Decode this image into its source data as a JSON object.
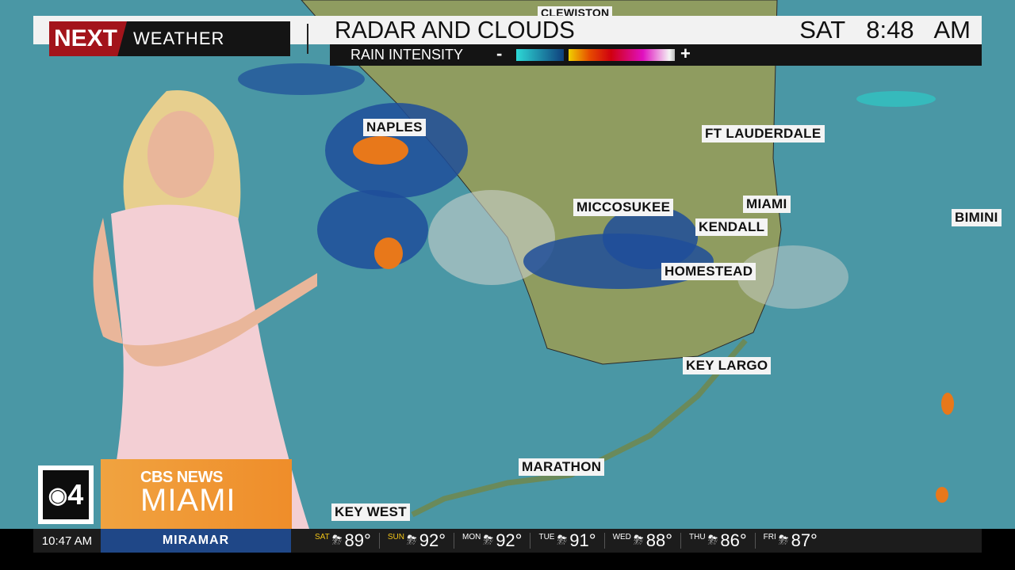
{
  "header": {
    "logo_next": "NEXT",
    "logo_weather": "WEATHER",
    "title": "RADAR AND CLOUDS",
    "day": "SAT",
    "time": "8:48 AM",
    "legend_label": "RAIN INTENSITY",
    "legend_minus": "-",
    "legend_plus": "+"
  },
  "map_labels": [
    "CLEWISTON",
    "NAPLES",
    "FT LAUDERDALE",
    "MICCOSUKEE",
    "MIAMI",
    "KENDALL",
    "BIMINI",
    "HOMESTEAD",
    "KEY LARGO",
    "MARATHON",
    "KEY WEST"
  ],
  "badge": {
    "channel": "4",
    "network": "CBS NEWS",
    "city": "MIAMI"
  },
  "ticker": {
    "clock": "10:47 AM",
    "location": "MIRAMAR",
    "forecast": [
      {
        "day": "SAT",
        "temp": "89°",
        "icon": "thunderstorm-icon",
        "highlight": true
      },
      {
        "day": "SUN",
        "temp": "92°",
        "icon": "thunderstorm-icon",
        "highlight": true
      },
      {
        "day": "MON",
        "temp": "92°",
        "icon": "thunderstorm-icon",
        "highlight": false
      },
      {
        "day": "TUE",
        "temp": "91°",
        "icon": "thunderstorm-icon",
        "highlight": false
      },
      {
        "day": "WED",
        "temp": "88°",
        "icon": "thunderstorm-icon",
        "highlight": false
      },
      {
        "day": "THU",
        "temp": "86°",
        "icon": "thunderstorm-icon",
        "highlight": false
      },
      {
        "day": "FRI",
        "temp": "87°",
        "icon": "thunderstorm-icon",
        "highlight": false
      }
    ]
  },
  "colors": {
    "ocean": "#4a97a5",
    "land": "#8a9a5e",
    "brand_red": "#a3141b",
    "badge_orange": "#ef8d2a",
    "ticker_blue": "#1f4787"
  }
}
